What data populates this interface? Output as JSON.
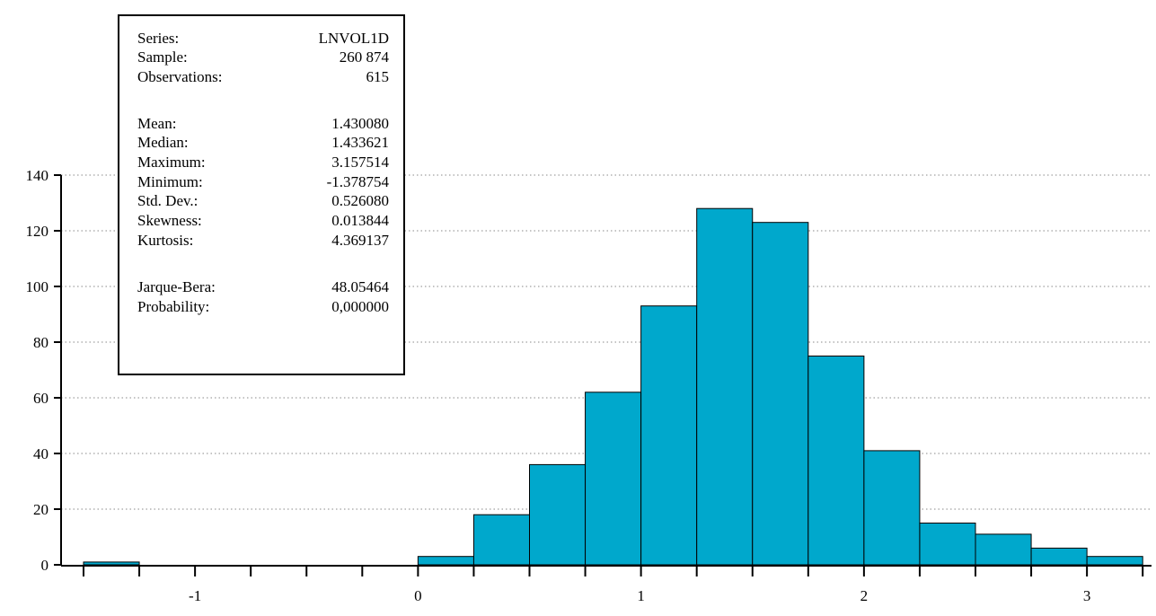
{
  "chart_data": {
    "type": "bar",
    "bins": [
      {
        "start": -1.5,
        "end": -1.25,
        "count": 1
      },
      {
        "start": -1.25,
        "end": -1.0,
        "count": 0
      },
      {
        "start": -1.0,
        "end": -0.75,
        "count": 0
      },
      {
        "start": -0.75,
        "end": -0.5,
        "count": 0
      },
      {
        "start": -0.5,
        "end": -0.25,
        "count": 0
      },
      {
        "start": -0.25,
        "end": 0.0,
        "count": 0
      },
      {
        "start": 0.0,
        "end": 0.25,
        "count": 3
      },
      {
        "start": 0.25,
        "end": 0.5,
        "count": 18
      },
      {
        "start": 0.5,
        "end": 0.75,
        "count": 36
      },
      {
        "start": 0.75,
        "end": 1.0,
        "count": 62
      },
      {
        "start": 1.0,
        "end": 1.25,
        "count": 93
      },
      {
        "start": 1.25,
        "end": 1.5,
        "count": 128
      },
      {
        "start": 1.5,
        "end": 1.75,
        "count": 123
      },
      {
        "start": 1.75,
        "end": 2.0,
        "count": 75
      },
      {
        "start": 2.0,
        "end": 2.25,
        "count": 41
      },
      {
        "start": 2.25,
        "end": 2.5,
        "count": 15
      },
      {
        "start": 2.5,
        "end": 2.75,
        "count": 11
      },
      {
        "start": 2.75,
        "end": 3.0,
        "count": 6
      },
      {
        "start": 3.0,
        "end": 3.25,
        "count": 3
      }
    ],
    "xlim": [
      -1.5,
      3.25
    ],
    "ylim": [
      0,
      140
    ],
    "x_tick_labels": [
      {
        "value": -1,
        "label": "-1"
      },
      {
        "value": 0,
        "label": "0"
      },
      {
        "value": 1,
        "label": "1"
      },
      {
        "value": 2,
        "label": "2"
      },
      {
        "value": 3,
        "label": "3"
      }
    ],
    "x_minor_ticks": [
      -1.5,
      -1.25,
      -1.0,
      -0.75,
      -0.5,
      -0.25,
      0.0,
      0.25,
      0.5,
      0.75,
      1.0,
      1.25,
      1.5,
      1.75,
      2.0,
      2.25,
      2.5,
      2.75,
      3.0,
      3.25
    ],
    "y_ticks": [
      0,
      20,
      40,
      60,
      80,
      100,
      120,
      140
    ],
    "grid": "horizontal dotted",
    "bar_color": "#00a8cc",
    "stats_box_position": "top-left",
    "statistics": [
      {
        "label": "Series:",
        "value": "LNVOL1D"
      },
      {
        "label": "Sample:",
        "value": "260 874"
      },
      {
        "label": "Observations:",
        "value": "615"
      },
      {
        "label": "Mean:",
        "value": "1.430080"
      },
      {
        "label": "Median:",
        "value": "1.433621"
      },
      {
        "label": "Maximum:",
        "value": "3.157514"
      },
      {
        "label": "Minimum:",
        "value": "-1.378754"
      },
      {
        "label": "Std. Dev.:",
        "value": "0.526080"
      },
      {
        "label": "Skewness:",
        "value": "0.013844"
      },
      {
        "label": "Kurtosis:",
        "value": "4.369137"
      },
      {
        "label": "Jarque-Bera:",
        "value": "48.05464"
      },
      {
        "label": "Probability:",
        "value": "0,000000"
      }
    ]
  }
}
